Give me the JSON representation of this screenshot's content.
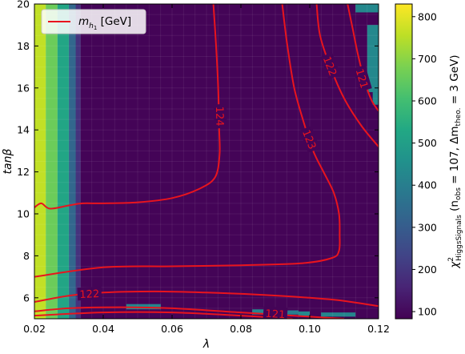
{
  "chart_data": {
    "type": "heatmap",
    "xlabel": "λ",
    "ylabel": "tanβ",
    "xlim": [
      0.02,
      0.12
    ],
    "ylim": [
      5,
      20
    ],
    "xticks": [
      "0.02",
      "0.04",
      "0.06",
      "0.08",
      "0.10",
      "0.12"
    ],
    "yticks": [
      "6",
      "8",
      "10",
      "12",
      "14",
      "16",
      "18",
      "20"
    ],
    "colorbar": {
      "label": "χ²HiggsSignals (nobs = 107, Δmtheo. = 3 GeV)",
      "label_parts": {
        "chi": "χ",
        "sup": "2",
        "sub": "HiggsSignals",
        "n_open": " (n",
        "n_sub": "obs",
        "n_eq": " = 107, Δm",
        "m_sub": "theo.",
        "tail": " = 3 GeV)"
      },
      "range": [
        83,
        830
      ],
      "ticks": [
        "100",
        "200",
        "300",
        "400",
        "500",
        "600",
        "700",
        "800"
      ],
      "colormap": "viridis"
    },
    "legend": {
      "label": "mh1 [GeV]",
      "label_parts": {
        "m": "m",
        "sub": "h",
        "subsub": "1",
        "unit": " [GeV]"
      },
      "position": "top-left"
    },
    "heatmap_columns": [
      {
        "x": [
          0.02,
          0.0233
        ],
        "chi2": 760
      },
      {
        "x": [
          0.0233,
          0.0267
        ],
        "chi2": 660
      },
      {
        "x": [
          0.0267,
          0.03
        ],
        "chi2": 520
      },
      {
        "x": [
          0.03,
          0.032
        ],
        "chi2": 330
      },
      {
        "x": [
          0.032,
          0.0333
        ],
        "chi2": 190
      }
    ],
    "heatmap_background_chi2": 90,
    "heatmap_patches": [
      {
        "x": [
          0.0467,
          0.0567
        ],
        "y": [
          5.45,
          5.7
        ],
        "chi2": 420
      },
      {
        "x": [
          0.0833,
          0.0867
        ],
        "y": [
          5.2,
          5.45
        ],
        "chi2": 420
      },
      {
        "x": [
          0.0867,
          0.0967
        ],
        "y": [
          5.2,
          5.4
        ],
        "chi2": 400
      },
      {
        "x": [
          0.0967,
          0.1
        ],
        "y": [
          5.1,
          5.35
        ],
        "chi2": 430
      },
      {
        "x": [
          0.1033,
          0.1133
        ],
        "y": [
          5.1,
          5.3
        ],
        "chi2": 420
      },
      {
        "x": [
          0.1133,
          0.12
        ],
        "y": [
          19.6,
          20
        ],
        "chi2": 430
      },
      {
        "x": [
          0.1167,
          0.12
        ],
        "y": [
          15.8,
          19.0
        ],
        "chi2": 430
      },
      {
        "x": [
          0.1183,
          0.12
        ],
        "y": [
          15.2,
          15.8
        ],
        "chi2": 430
      }
    ],
    "contours": [
      {
        "level": "124",
        "label_at": [
          0.074,
          14.65
        ],
        "points": [
          [
            0.072,
            20
          ],
          [
            0.0728,
            18
          ],
          [
            0.0734,
            16
          ],
          [
            0.0737,
            14
          ],
          [
            0.0738,
            12.8
          ],
          [
            0.0725,
            11.75
          ],
          [
            0.068,
            11.2
          ],
          [
            0.06,
            10.75
          ],
          [
            0.05,
            10.55
          ],
          [
            0.04,
            10.5
          ],
          [
            0.034,
            10.5
          ],
          [
            0.03,
            10.4
          ],
          [
            0.0245,
            10.25
          ],
          [
            0.022,
            10.5
          ],
          [
            0.02,
            10.3
          ]
        ]
      },
      {
        "level": "123",
        "label_at": [
          0.1,
          13.55
        ],
        "points": [
          [
            0.092,
            20
          ],
          [
            0.0935,
            18
          ],
          [
            0.0955,
            16
          ],
          [
            0.098,
            14.5
          ],
          [
            0.101,
            13.0
          ],
          [
            0.104,
            12.0
          ],
          [
            0.107,
            11.0
          ],
          [
            0.1085,
            10.0
          ],
          [
            0.1087,
            9.0
          ],
          [
            0.1085,
            8.25
          ],
          [
            0.1065,
            7.9
          ],
          [
            0.098,
            7.65
          ],
          [
            0.08,
            7.55
          ],
          [
            0.06,
            7.5
          ],
          [
            0.04,
            7.45
          ],
          [
            0.02,
            7.0
          ]
        ]
      },
      {
        "level": "122",
        "label_at": [
          0.036,
          6.2
        ],
        "points": [
          [
            0.02,
            5.8
          ],
          [
            0.03,
            6.1
          ],
          [
            0.04,
            6.25
          ],
          [
            0.055,
            6.3
          ],
          [
            0.07,
            6.25
          ],
          [
            0.085,
            6.15
          ],
          [
            0.1,
            6.0
          ],
          [
            0.11,
            5.85
          ],
          [
            0.12,
            5.6
          ]
        ]
      },
      {
        "level": "122",
        "label_at": [
          0.106,
          17.05
        ],
        "points": [
          [
            0.102,
            20
          ],
          [
            0.103,
            18.5
          ],
          [
            0.106,
            17.0
          ],
          [
            0.11,
            15.5
          ],
          [
            0.115,
            14.2
          ],
          [
            0.12,
            13.2
          ]
        ]
      },
      {
        "level": "121",
        "label_at": [
          0.09,
          5.25
        ],
        "points": [
          [
            0.02,
            5.35
          ],
          [
            0.03,
            5.5
          ],
          [
            0.045,
            5.55
          ],
          [
            0.06,
            5.5
          ],
          [
            0.08,
            5.3
          ],
          [
            0.095,
            5.15
          ],
          [
            0.105,
            5.05
          ],
          [
            0.11,
            5.0
          ]
        ]
      },
      {
        "level": "121",
        "label_at": [
          0.1153,
          16.45
        ],
        "points": [
          [
            0.111,
            20
          ],
          [
            0.1125,
            18.8
          ],
          [
            0.114,
            17.6
          ],
          [
            0.116,
            16.3
          ],
          [
            0.118,
            15.4
          ],
          [
            0.12,
            14.9
          ]
        ]
      },
      {
        "level": "",
        "label_at": null,
        "points": [
          [
            0.02,
            5.15
          ],
          [
            0.04,
            5.3
          ],
          [
            0.06,
            5.3
          ],
          [
            0.08,
            5.15
          ],
          [
            0.09,
            5.05
          ],
          [
            0.095,
            5.0
          ]
        ]
      }
    ]
  },
  "colors": {
    "contour": "#e8141e",
    "viridis": [
      "#440154",
      "#482475",
      "#414487",
      "#355f8d",
      "#2a788e",
      "#21918c",
      "#22a884",
      "#44bf70",
      "#7ad151",
      "#bddf26",
      "#fde725"
    ]
  }
}
